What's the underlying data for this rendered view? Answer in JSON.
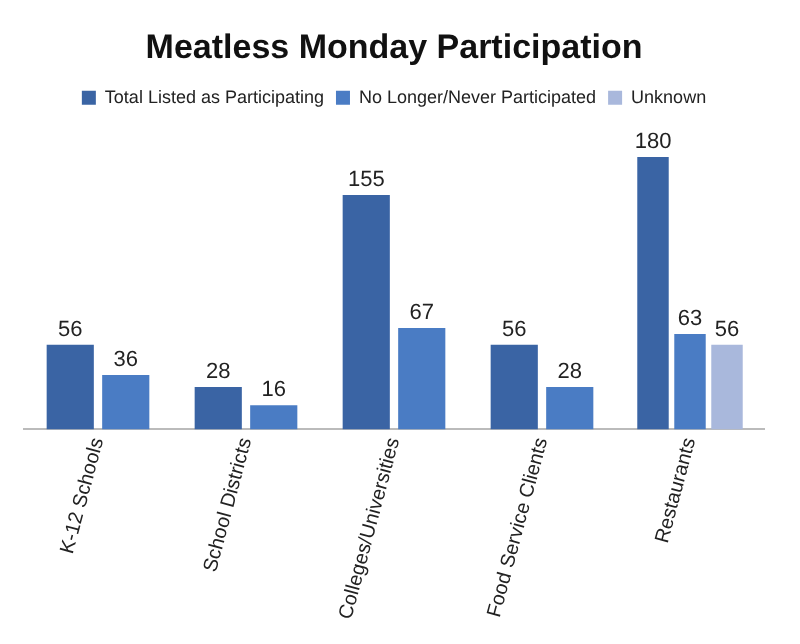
{
  "chart_data": {
    "type": "bar",
    "title": "Meatless Monday Participation",
    "categories": [
      "K-12 Schools",
      "School Districts",
      "Colleges/Universities",
      "Food Service Clients",
      "Restaurants"
    ],
    "series": [
      {
        "name": "Total Listed as Participating",
        "color": "#3a64a4",
        "values": [
          56,
          28,
          155,
          56,
          180
        ]
      },
      {
        "name": "No Longer/Never Participated",
        "color": "#4a7cc4",
        "values": [
          36,
          16,
          67,
          28,
          63
        ]
      },
      {
        "name": "Unknown",
        "color": "#a9b8dc",
        "values": [
          null,
          null,
          null,
          null,
          56
        ]
      }
    ],
    "data_labels": true,
    "legend": "top",
    "grid": false
  }
}
